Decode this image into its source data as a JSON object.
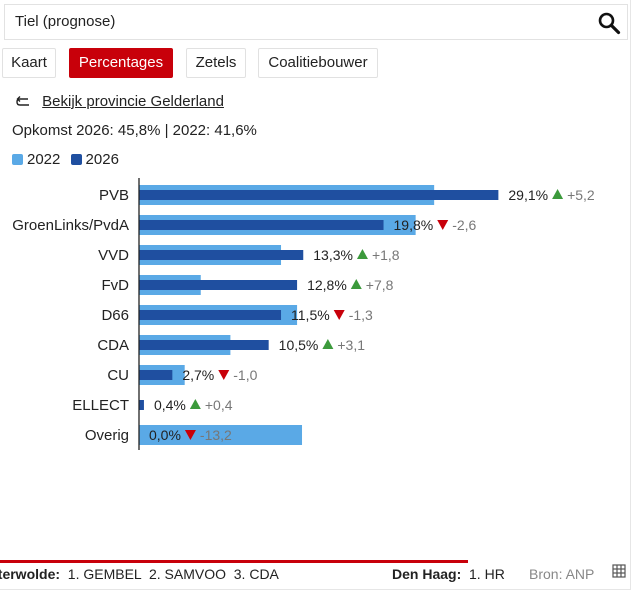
{
  "search": {
    "title": "Tiel (prognose)",
    "icon": "search-icon"
  },
  "tabs": [
    {
      "label": "Kaart",
      "active": false
    },
    {
      "label": "Percentages",
      "active": true
    },
    {
      "label": "Zetels",
      "active": false
    },
    {
      "label": "Coalitiebouwer",
      "active": false
    }
  ],
  "province_link": {
    "label": "Bekijk provincie Gelderland",
    "icon": "return-arrow-icon"
  },
  "turnout": "Opkomst 2026: 45,8% | 2022: 41,6%",
  "legend": [
    {
      "label": "2022",
      "color": "#5aa9e6"
    },
    {
      "label": "2026",
      "color": "#1f4fa0"
    }
  ],
  "colors": {
    "up": "#3c9a3c",
    "down": "#c8000a",
    "accent": "#c8000a",
    "delta_text": "#777777"
  },
  "chart_data": {
    "type": "bar",
    "orientation": "horizontal",
    "series": [
      {
        "name": "2022",
        "values": [
          23.9,
          22.4,
          11.5,
          5.0,
          12.8,
          7.4,
          3.7,
          0.0,
          13.2
        ]
      },
      {
        "name": "2026",
        "values": [
          29.1,
          19.8,
          13.3,
          12.8,
          11.5,
          10.5,
          2.7,
          0.4,
          0.0
        ]
      }
    ],
    "categories": [
      "PVB",
      "GroenLinks/PvdA",
      "VVD",
      "FvD",
      "D66",
      "CDA",
      "CU",
      "ELLECT",
      "Overig"
    ],
    "labels": [
      "29,1%",
      "19,8%",
      "13,3%",
      "12,8%",
      "11,5%",
      "10,5%",
      "2,7%",
      "0,4%",
      "0,0%"
    ],
    "changes": [
      "+5,2",
      "-2,6",
      "+1,8",
      "+7,8",
      "-1,3",
      "+3,1",
      "-1,0",
      "+0,4",
      "-13,2"
    ],
    "directions": [
      "up",
      "down",
      "up",
      "up",
      "down",
      "up",
      "down",
      "up",
      "down"
    ],
    "xlim": [
      0,
      32
    ]
  },
  "ticker": {
    "item1_place": "sterwolde:",
    "item1_text": "1. GEMBEL  2. SAMVOO  3. CDA",
    "item2_place": "Den Haag:",
    "item2_text": "1. HR",
    "source": "Bron: ANP",
    "icon": "table-icon"
  }
}
